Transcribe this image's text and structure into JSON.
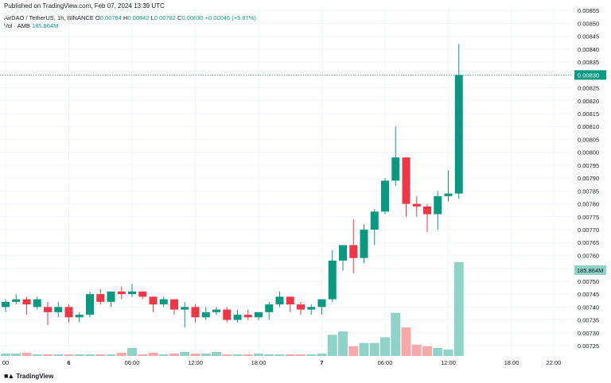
{
  "published": "Published on TradingView.com, Feb 07, 2024 13:39 UTC",
  "header": {
    "symbol": "AirDAO / TetherUS, 1h, BINANCE",
    "o_label": "O",
    "o_val": "0.00784",
    "h_label": "H",
    "h_val": "0.00842",
    "l_label": "L",
    "l_val": "0.00782",
    "c_label": "C",
    "c_val": "0.00830",
    "change": "+0.00046 (+5.87%)"
  },
  "volume": {
    "label": "Vol · AMB",
    "value": "185.864M"
  },
  "footer": {
    "brand": "TradingView"
  },
  "colors": {
    "up": "#089981",
    "down": "#f23645",
    "vol_up": "#8fd3c8",
    "vol_down": "#f7a8a8"
  },
  "chart_data": {
    "type": "candlestick",
    "price_labels": [
      "0.00855",
      "0.00850",
      "0.00845",
      "0.00840",
      "0.00835",
      "0.00830",
      "0.00825",
      "0.00820",
      "0.00815",
      "0.00810",
      "0.00805",
      "0.00800",
      "0.00795",
      "0.00790",
      "0.00785",
      "0.00780",
      "0.00775",
      "0.00770",
      "0.00765",
      "0.00760",
      "0.00755",
      "0.00750",
      "0.00745",
      "0.00740",
      "0.00735",
      "0.00730",
      "0.00725"
    ],
    "ylim": [
      0.00721,
      0.00856
    ],
    "last_price": "0.00830",
    "last_volume": "185.864M",
    "time_labels": [
      "00",
      "6",
      "06:00",
      "12:00",
      "18:00",
      "7",
      "06:00",
      "12:00",
      "18:00",
      "22:00"
    ],
    "time_label_index": [
      0,
      6,
      12,
      18,
      24,
      30,
      36,
      42,
      48,
      52
    ],
    "bold_labels": [
      "6",
      "7"
    ],
    "candles": [
      {
        "o": 0.0074,
        "h": 0.00743,
        "l": 0.00738,
        "c": 0.00742,
        "v": 3
      },
      {
        "o": 0.00742,
        "h": 0.00745,
        "l": 0.00741,
        "c": 0.00743,
        "v": 3
      },
      {
        "o": 0.00743,
        "h": 0.00744,
        "l": 0.00737,
        "c": 0.00741,
        "v": 4
      },
      {
        "o": 0.0074,
        "h": 0.00744,
        "l": 0.00739,
        "c": 0.00743,
        "v": 2
      },
      {
        "o": 0.0074,
        "h": 0.00742,
        "l": 0.00733,
        "c": 0.00738,
        "v": 2
      },
      {
        "o": 0.00738,
        "h": 0.00742,
        "l": 0.00736,
        "c": 0.0074,
        "v": 2
      },
      {
        "o": 0.0074,
        "h": 0.00741,
        "l": 0.00734,
        "c": 0.00736,
        "v": 2
      },
      {
        "o": 0.00736,
        "h": 0.00738,
        "l": 0.00734,
        "c": 0.00737,
        "v": 2
      },
      {
        "o": 0.00737,
        "h": 0.00746,
        "l": 0.00736,
        "c": 0.00745,
        "v": 2
      },
      {
        "o": 0.00745,
        "h": 0.00747,
        "l": 0.00741,
        "c": 0.00742,
        "v": 2
      },
      {
        "o": 0.00742,
        "h": 0.00746,
        "l": 0.0074,
        "c": 0.00746,
        "v": 2
      },
      {
        "o": 0.00746,
        "h": 0.00748,
        "l": 0.00743,
        "c": 0.00745,
        "v": 4
      },
      {
        "o": 0.00745,
        "h": 0.00749,
        "l": 0.00744,
        "c": 0.00746,
        "v": 10
      },
      {
        "o": 0.00746,
        "h": 0.00746,
        "l": 0.00743,
        "c": 0.00744,
        "v": 2
      },
      {
        "o": 0.00744,
        "h": 0.00744,
        "l": 0.00738,
        "c": 0.00741,
        "v": 4
      },
      {
        "o": 0.00741,
        "h": 0.00744,
        "l": 0.0074,
        "c": 0.00743,
        "v": 2
      },
      {
        "o": 0.00743,
        "h": 0.00743,
        "l": 0.00737,
        "c": 0.00739,
        "v": 3
      },
      {
        "o": 0.00739,
        "h": 0.00742,
        "l": 0.00732,
        "c": 0.0074,
        "v": 5
      },
      {
        "o": 0.0074,
        "h": 0.00741,
        "l": 0.00734,
        "c": 0.00736,
        "v": 3
      },
      {
        "o": 0.00736,
        "h": 0.0074,
        "l": 0.00735,
        "c": 0.00738,
        "v": 3
      },
      {
        "o": 0.00738,
        "h": 0.0074,
        "l": 0.00737,
        "c": 0.00739,
        "v": 5
      },
      {
        "o": 0.00739,
        "h": 0.0074,
        "l": 0.00734,
        "c": 0.00735,
        "v": 2
      },
      {
        "o": 0.00735,
        "h": 0.00739,
        "l": 0.00734,
        "c": 0.00737,
        "v": 2
      },
      {
        "o": 0.00737,
        "h": 0.00739,
        "l": 0.00735,
        "c": 0.00736,
        "v": 2
      },
      {
        "o": 0.00736,
        "h": 0.00738,
        "l": 0.00735,
        "c": 0.00738,
        "v": 3
      },
      {
        "o": 0.00738,
        "h": 0.00742,
        "l": 0.00735,
        "c": 0.00741,
        "v": 2
      },
      {
        "o": 0.00741,
        "h": 0.00746,
        "l": 0.0074,
        "c": 0.00744,
        "v": 2
      },
      {
        "o": 0.00744,
        "h": 0.00744,
        "l": 0.00738,
        "c": 0.00741,
        "v": 2
      },
      {
        "o": 0.00741,
        "h": 0.00742,
        "l": 0.00737,
        "c": 0.00739,
        "v": 2
      },
      {
        "o": 0.00739,
        "h": 0.00741,
        "l": 0.00737,
        "c": 0.0074,
        "v": 2
      },
      {
        "o": 0.0074,
        "h": 0.00742,
        "l": 0.00737,
        "c": 0.00743,
        "v": 3
      },
      {
        "o": 0.00743,
        "h": 0.00762,
        "l": 0.00742,
        "c": 0.00758,
        "v": 26
      },
      {
        "o": 0.00758,
        "h": 0.00764,
        "l": 0.00754,
        "c": 0.00764,
        "v": 30
      },
      {
        "o": 0.00764,
        "h": 0.00774,
        "l": 0.00753,
        "c": 0.00759,
        "v": 12
      },
      {
        "o": 0.00759,
        "h": 0.00772,
        "l": 0.00757,
        "c": 0.0077,
        "v": 16
      },
      {
        "o": 0.0077,
        "h": 0.00778,
        "l": 0.00764,
        "c": 0.00777,
        "v": 16
      },
      {
        "o": 0.00777,
        "h": 0.0079,
        "l": 0.00776,
        "c": 0.00789,
        "v": 23
      },
      {
        "o": 0.00789,
        "h": 0.0081,
        "l": 0.00787,
        "c": 0.00798,
        "v": 53
      },
      {
        "o": 0.00798,
        "h": 0.00798,
        "l": 0.00775,
        "c": 0.0078,
        "v": 35
      },
      {
        "o": 0.0078,
        "h": 0.00783,
        "l": 0.00775,
        "c": 0.00779,
        "v": 14
      },
      {
        "o": 0.00779,
        "h": 0.0078,
        "l": 0.00769,
        "c": 0.00776,
        "v": 12
      },
      {
        "o": 0.00776,
        "h": 0.00785,
        "l": 0.0077,
        "c": 0.00783,
        "v": 10
      },
      {
        "o": 0.00783,
        "h": 0.00793,
        "l": 0.00781,
        "c": 0.00784,
        "v": 8
      },
      {
        "o": 0.00784,
        "h": 0.00842,
        "l": 0.00782,
        "c": 0.0083,
        "v": 115
      }
    ]
  }
}
